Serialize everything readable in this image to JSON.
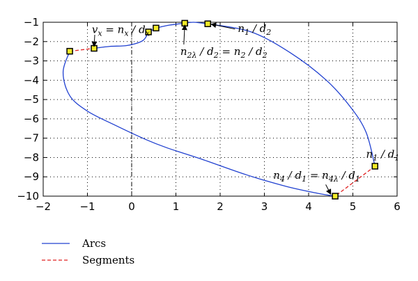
{
  "chart_data": {
    "type": "line",
    "xlim": [
      -2,
      6
    ],
    "ylim": [
      -10,
      -1
    ],
    "xticks": [
      -2,
      -1,
      0,
      1,
      2,
      3,
      4,
      5,
      6
    ],
    "yticks": [
      -1,
      -2,
      -3,
      -4,
      -5,
      -6,
      -7,
      -8,
      -9,
      -10
    ],
    "grid": true,
    "axis_line": "vertical dash-dot line at x = 0",
    "legend_position": "below-left",
    "series": [
      {
        "name": "Arcs",
        "style": "solid",
        "color": "#2040d0",
        "segments": [
          [
            [
              -1.4,
              -2.5
            ],
            [
              -1.55,
              -3.6
            ],
            [
              -1.4,
              -4.8
            ],
            [
              -1.0,
              -5.6
            ],
            [
              -0.4,
              -6.3
            ],
            [
              0.3,
              -7.05
            ],
            [
              0.8,
              -7.5
            ],
            [
              1.6,
              -8.1
            ],
            [
              2.6,
              -8.9
            ],
            [
              3.5,
              -9.5
            ],
            [
              4.2,
              -9.85
            ],
            [
              4.6,
              -10
            ]
          ],
          [
            [
              -0.85,
              -2.35
            ],
            [
              -0.5,
              -2.25
            ],
            [
              -0.1,
              -2.2
            ],
            [
              0.25,
              -1.95
            ],
            [
              0.38,
              -1.5
            ]
          ],
          [
            [
              0.38,
              -1.5
            ],
            [
              0.55,
              -1.3
            ]
          ],
          [
            [
              0.55,
              -1.3
            ],
            [
              0.85,
              -1.15
            ],
            [
              1.2,
              -1.05
            ]
          ],
          [
            [
              1.2,
              -1.05
            ],
            [
              1.4,
              -1.0
            ],
            [
              1.72,
              -1.08
            ]
          ],
          [
            [
              1.72,
              -1.08
            ],
            [
              2.7,
              -1.5
            ],
            [
              3.6,
              -2.6
            ],
            [
              4.4,
              -4.0
            ],
            [
              4.95,
              -5.4
            ],
            [
              5.3,
              -6.7
            ],
            [
              5.5,
              -8.45
            ]
          ]
        ]
      },
      {
        "name": "Segments",
        "style": "dashed",
        "color": "#e02020",
        "segments": [
          [
            [
              -1.4,
              -2.5
            ],
            [
              -0.85,
              -2.35
            ]
          ],
          [
            [
              5.5,
              -8.45
            ],
            [
              4.6,
              -10
            ]
          ]
        ]
      }
    ],
    "markers": [
      {
        "x": -1.4,
        "y": -2.5
      },
      {
        "x": -0.85,
        "y": -2.35
      },
      {
        "x": 0.38,
        "y": -1.5
      },
      {
        "x": 0.55,
        "y": -1.3
      },
      {
        "x": 1.2,
        "y": -1.05
      },
      {
        "x": 1.72,
        "y": -1.08
      },
      {
        "x": 5.5,
        "y": -8.45
      },
      {
        "x": 4.6,
        "y": -10
      }
    ],
    "marker_style": {
      "fill": "#f2ea28",
      "stroke": "#000000"
    },
    "annotations": [
      {
        "text": "v_x = n_x / d_x",
        "x": -0.9,
        "y": -1.55,
        "arrow_to": {
          "x": -0.85,
          "y": -2.25
        }
      },
      {
        "text": "n_{2λ} / d_2 = n_2 / d_2",
        "x": 1.1,
        "y": -2.7,
        "arrow_to": {
          "x": 1.2,
          "y": -1.15
        }
      },
      {
        "text": "n_1 / d_2",
        "x": 2.4,
        "y": -1.5,
        "arrow_to": {
          "x": 1.8,
          "y": -1.1
        }
      },
      {
        "text": "n_1 / d_1",
        "x": 5.3,
        "y": -8.0,
        "arrow_to": null
      },
      {
        "text": "n_4 / d_1 = n_{4λ} / d_1",
        "x": 3.2,
        "y": -9.1,
        "arrow_to": {
          "x": 4.5,
          "y": -9.9
        }
      }
    ]
  }
}
